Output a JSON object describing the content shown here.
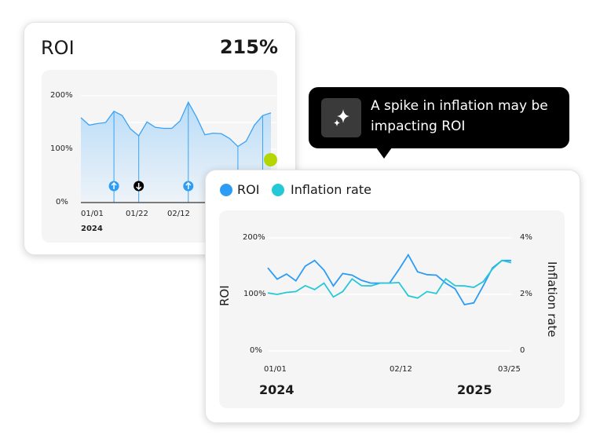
{
  "roi_card": {
    "title": "ROI",
    "value": "215%"
  },
  "tooltip": {
    "icon": "sparkle-icon",
    "line1": "A spike in inflation may be",
    "line2": "impacting ROI"
  },
  "status_dot_color": "#b5d600",
  "chart_data": [
    {
      "type": "area",
      "y_ticks": [
        "200%",
        "100%",
        "0%"
      ],
      "ylim": [
        0,
        200
      ],
      "x_ticks": [
        "01/01",
        "01/22",
        "02/12"
      ],
      "year_label": "2024",
      "grid": true,
      "color": "#3ba3f5",
      "values": [
        159,
        145,
        148,
        150,
        171,
        163,
        138,
        125,
        151,
        141,
        139,
        139,
        153,
        188,
        160,
        127,
        130,
        129,
        120,
        105,
        115,
        145,
        163,
        168
      ],
      "markers": [
        {
          "index": 4,
          "direction": "up"
        },
        {
          "index": 7,
          "direction": "down"
        },
        {
          "index": 13,
          "direction": "up"
        }
      ],
      "drop_lines": [
        4,
        7,
        13,
        19,
        22
      ]
    },
    {
      "type": "line",
      "legend": [
        {
          "name": "ROI",
          "color": "#2d9cf5"
        },
        {
          "name": "Inflation rate",
          "color": "#26c8d8"
        }
      ],
      "y_left": {
        "label": "ROI",
        "ticks": [
          "200%",
          "100%",
          "0%"
        ],
        "range": [
          0,
          200
        ]
      },
      "y_right": {
        "label": "Inflation rate",
        "ticks": [
          "4%",
          "2%",
          "0"
        ],
        "range": [
          0,
          4
        ]
      },
      "x_ticks": [
        "01/01",
        "02/12",
        "03/25"
      ],
      "year_labels": [
        "2024",
        "2025"
      ],
      "grid": true,
      "series": [
        {
          "name": "ROI",
          "axis": "left",
          "values": [
            147,
            127,
            136,
            124,
            150,
            160,
            143,
            115,
            137,
            134,
            125,
            120,
            120,
            120,
            144,
            170,
            140,
            135,
            134,
            120,
            110,
            82,
            85,
            115,
            147,
            160,
            160
          ]
        },
        {
          "name": "Inflation rate",
          "axis": "right",
          "values": [
            2.05,
            2.0,
            2.07,
            2.1,
            2.31,
            2.17,
            2.4,
            1.91,
            2.1,
            2.55,
            2.31,
            2.3,
            2.4,
            2.4,
            2.42,
            1.95,
            1.87,
            2.1,
            2.03,
            2.55,
            2.31,
            2.3,
            2.25,
            2.45,
            2.9,
            3.2,
            3.12
          ]
        }
      ]
    }
  ]
}
